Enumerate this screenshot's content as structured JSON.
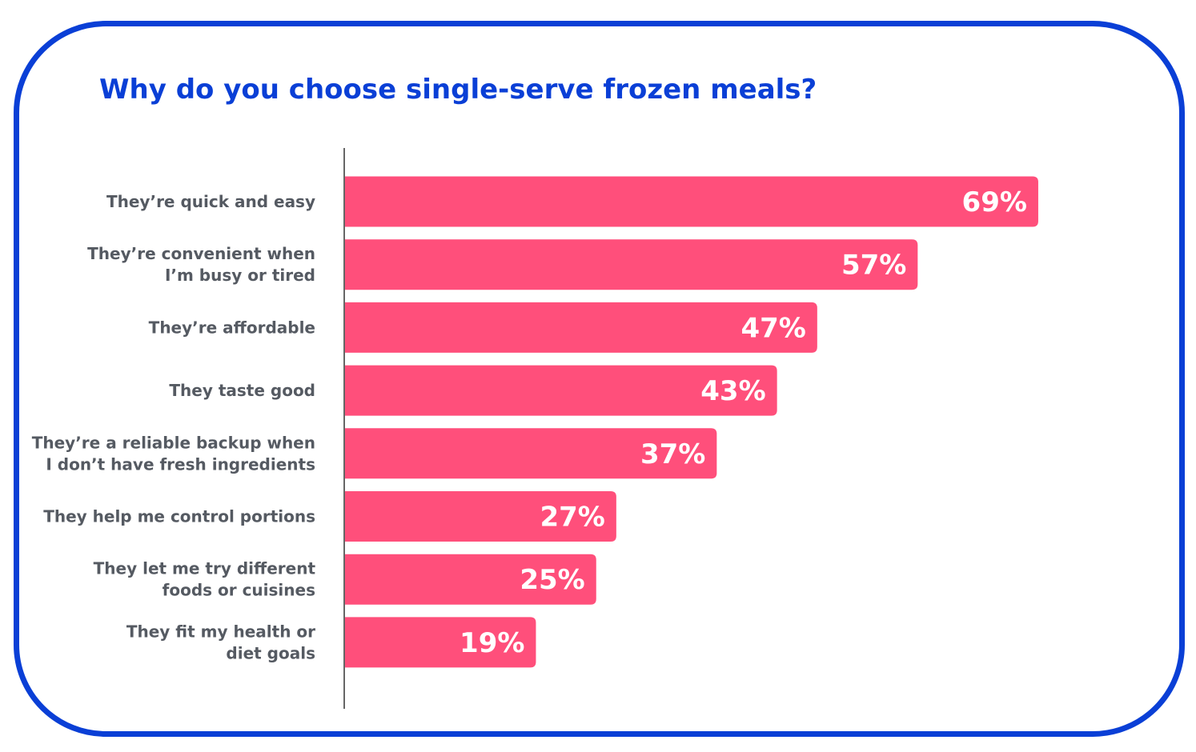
{
  "chart_data": {
    "type": "bar",
    "orientation": "horizontal",
    "title": "Why do you choose single-serve frozen meals?",
    "categories": [
      [
        "They’re quick and easy"
      ],
      [
        "They’re convenient when",
        "I’m busy or tired"
      ],
      [
        "They’re affordable"
      ],
      [
        "They taste good"
      ],
      [
        "They’re a reliable backup when",
        "I don’t have fresh ingredients"
      ],
      [
        "They help me control portions"
      ],
      [
        "They let me try different",
        "foods or cuisines"
      ],
      [
        "They fit my health or",
        "diet goals"
      ]
    ],
    "values": [
      69,
      57,
      47,
      43,
      37,
      27,
      25,
      19
    ],
    "value_labels": [
      "69%",
      "57%",
      "47%",
      "43%",
      "37%",
      "27%",
      "25%",
      "19%"
    ],
    "xlim": [
      0,
      100
    ],
    "grid": false,
    "legend": "none"
  },
  "colors": {
    "bar": "#ff4f7b",
    "accent": "#0a3fd6",
    "label": "#555a62",
    "axis": "#666666"
  }
}
